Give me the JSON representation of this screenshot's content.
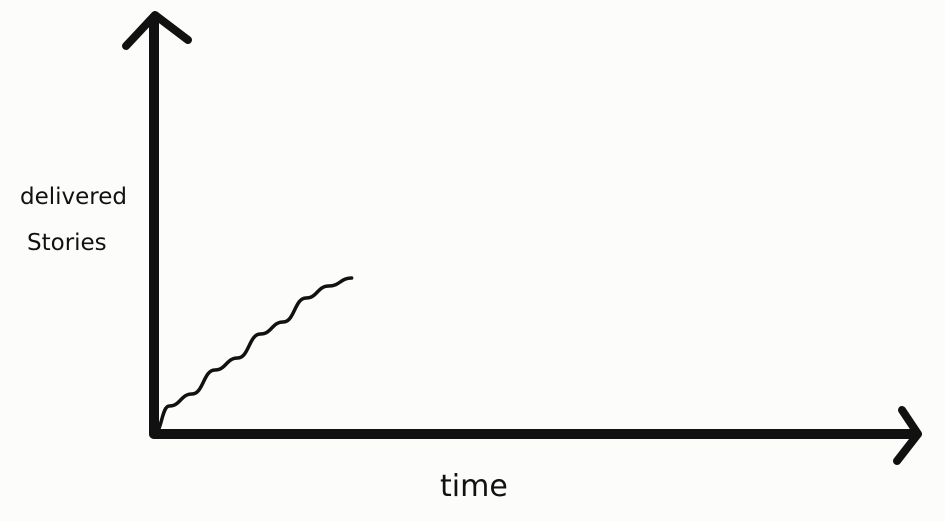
{
  "chart_data": {
    "type": "line",
    "xlabel": "time",
    "ylabel_lines": [
      "delivered",
      "Stories"
    ],
    "grid": false,
    "legend": "none",
    "axis_color": "#111111",
    "line_color": "#111111",
    "xlim": [
      0,
      100
    ],
    "ylim": [
      0,
      100
    ],
    "series": [
      {
        "x": [
          0,
          2,
          5,
          8,
          11,
          14,
          17,
          20,
          23,
          26
        ],
        "y": [
          0,
          7,
          10,
          16,
          19,
          25,
          28,
          34,
          37,
          39
        ]
      }
    ]
  }
}
